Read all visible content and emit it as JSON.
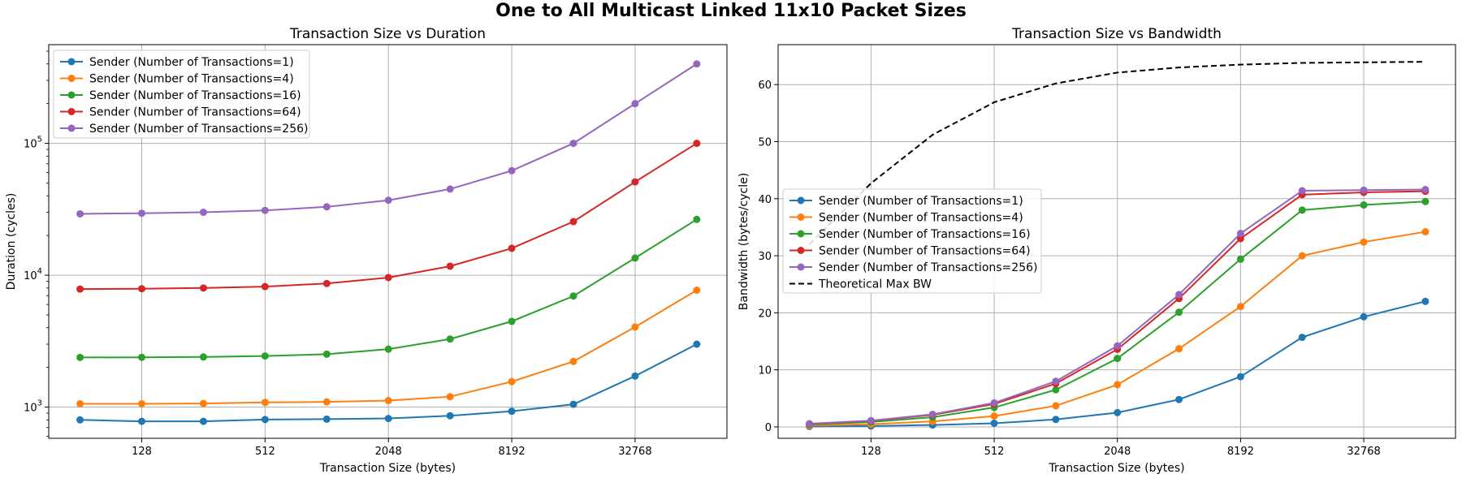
{
  "figure": {
    "title": "One to All Multicast Linked 11x10 Packet Sizes"
  },
  "colors": {
    "blue": "#1f77b4",
    "orange": "#ff7f0e",
    "green": "#2ca02c",
    "red": "#d62728",
    "purple": "#9467bd",
    "black": "#000000",
    "grid": "#b0b0b0"
  },
  "chart_data": [
    {
      "type": "line",
      "title": "Transaction Size vs Duration",
      "xlabel": "Transaction Size (bytes)",
      "ylabel": "Duration (cycles)",
      "xscale": "log2",
      "yscale": "log10",
      "x": [
        64,
        128,
        256,
        512,
        1024,
        2048,
        4096,
        8192,
        16384,
        32768,
        65536
      ],
      "xticks": [
        128,
        512,
        2048,
        8192,
        32768
      ],
      "xtick_labels": [
        "128",
        "512",
        "2048",
        "8192",
        "32768"
      ],
      "xlim": [
        45,
        92000
      ],
      "ylim": [
        580,
        560000
      ],
      "yticks": [
        1000,
        10000,
        100000
      ],
      "ytick_labels": [
        {
          "base": "10",
          "exp": "3"
        },
        {
          "base": "10",
          "exp": "4"
        },
        {
          "base": "10",
          "exp": "5"
        }
      ],
      "grid": true,
      "legend_position": "upper left",
      "series": [
        {
          "name": "Sender (Number of Transactions=1)",
          "color": "blue",
          "marker": "circle",
          "values": [
            800,
            780,
            780,
            805,
            810,
            820,
            860,
            930,
            1050,
            1720,
            3000
          ]
        },
        {
          "name": "Sender (Number of Transactions=4)",
          "color": "orange",
          "marker": "circle",
          "values": [
            1060,
            1060,
            1065,
            1085,
            1095,
            1120,
            1200,
            1560,
            2220,
            4050,
            7700
          ]
        },
        {
          "name": "Sender (Number of Transactions=16)",
          "color": "green",
          "marker": "circle",
          "values": [
            2380,
            2385,
            2400,
            2440,
            2520,
            2750,
            3280,
            4470,
            6950,
            13500,
            26500
          ]
        },
        {
          "name": "Sender (Number of Transactions=64)",
          "color": "red",
          "marker": "circle",
          "values": [
            7850,
            7900,
            8000,
            8200,
            8650,
            9600,
            11700,
            16000,
            25500,
            51000,
            100000
          ]
        },
        {
          "name": "Sender (Number of Transactions=256)",
          "color": "purple",
          "marker": "circle",
          "values": [
            29200,
            29500,
            30000,
            31000,
            33000,
            37000,
            45000,
            62000,
            100000,
            200000,
            400000
          ]
        }
      ]
    },
    {
      "type": "line",
      "title": "Transaction Size vs Bandwidth",
      "xlabel": "Transaction Size (bytes)",
      "ylabel": "Bandwidth (bytes/cycle)",
      "xscale": "log2",
      "yscale": "linear",
      "x": [
        64,
        128,
        256,
        512,
        1024,
        2048,
        4096,
        8192,
        16384,
        32768,
        65536
      ],
      "xticks": [
        128,
        512,
        2048,
        8192,
        32768
      ],
      "xtick_labels": [
        "128",
        "512",
        "2048",
        "8192",
        "32768"
      ],
      "xlim": [
        45,
        92000
      ],
      "ylim": [
        -2,
        67
      ],
      "yticks": [
        0,
        10,
        20,
        30,
        40,
        50,
        60
      ],
      "ytick_labels": [
        "0",
        "10",
        "20",
        "30",
        "40",
        "50",
        "60"
      ],
      "grid": true,
      "legend_position": "center left",
      "series": [
        {
          "name": "Sender (Number of Transactions=1)",
          "color": "blue",
          "marker": "circle",
          "dash": false,
          "values": [
            0.08,
            0.16,
            0.33,
            0.64,
            1.3,
            2.5,
            4.8,
            8.8,
            15.7,
            19.3,
            22.0
          ]
        },
        {
          "name": "Sender (Number of Transactions=4)",
          "color": "orange",
          "marker": "circle",
          "dash": false,
          "values": [
            0.24,
            0.48,
            0.96,
            1.9,
            3.7,
            7.4,
            13.7,
            21.1,
            30.0,
            32.4,
            34.2
          ]
        },
        {
          "name": "Sender (Number of Transactions=16)",
          "color": "green",
          "marker": "circle",
          "dash": false,
          "values": [
            0.43,
            0.86,
            1.7,
            3.4,
            6.5,
            12.0,
            20.1,
            29.4,
            38.0,
            38.9,
            39.5
          ]
        },
        {
          "name": "Sender (Number of Transactions=64)",
          "color": "red",
          "marker": "circle",
          "dash": false,
          "values": [
            0.52,
            1.05,
            2.1,
            4.0,
            7.6,
            13.6,
            22.5,
            33.0,
            40.7,
            41.1,
            41.3
          ]
        },
        {
          "name": "Sender (Number of Transactions=256)",
          "color": "purple",
          "marker": "circle",
          "dash": false,
          "values": [
            0.56,
            1.1,
            2.2,
            4.2,
            8.0,
            14.2,
            23.2,
            33.9,
            41.4,
            41.5,
            41.6
          ]
        },
        {
          "name": "Theoretical Max BW",
          "color": "black",
          "marker": "none",
          "dash": true,
          "values": [
            32.0,
            42.7,
            51.2,
            56.9,
            60.2,
            62.1,
            63.0,
            63.5,
            63.8,
            63.9,
            64.0
          ]
        }
      ]
    }
  ]
}
